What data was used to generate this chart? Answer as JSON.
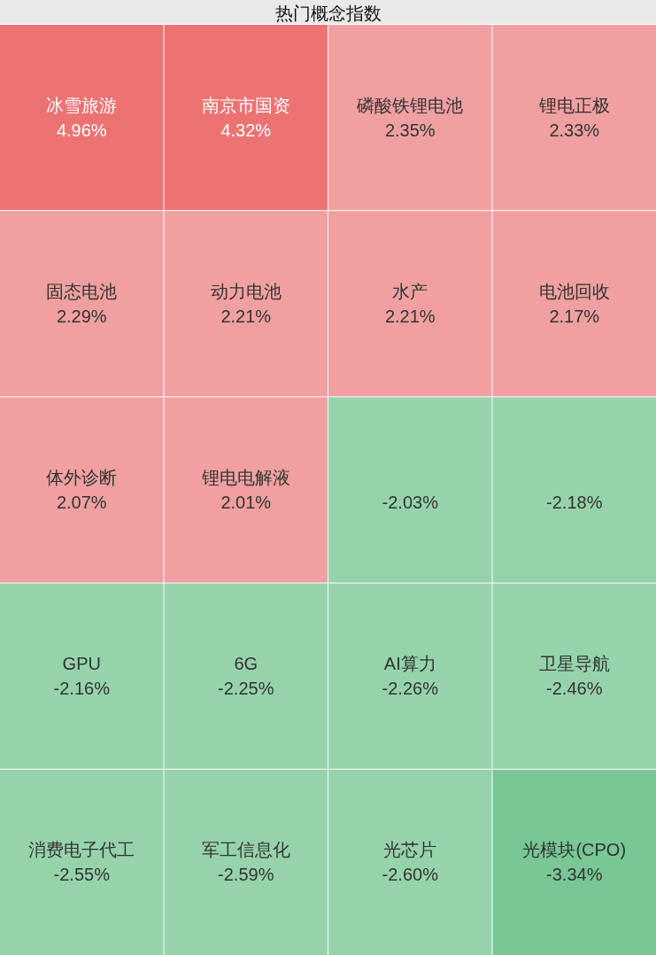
{
  "chart_data": {
    "type": "other",
    "title": "热门概念指数",
    "categories": [
      "冰雪旅游",
      "南京市国资",
      "磷酸铁锂电池",
      "锂电正极",
      "固态电池",
      "动力电池",
      "水产",
      "电池回收",
      "体外诊断",
      "锂电电解液",
      null,
      null,
      "GPU",
      "6G",
      "AI算力",
      "卫星导航",
      "消费电子代工",
      "军工信息化",
      "光芯片",
      "光模块(CPO)"
    ],
    "values": [
      4.96,
      4.32,
      2.35,
      2.33,
      2.29,
      2.21,
      2.21,
      2.17,
      2.07,
      2.01,
      -2.03,
      -2.18,
      -2.16,
      -2.25,
      -2.26,
      -2.46,
      -2.55,
      -2.59,
      -2.6,
      -3.34
    ],
    "value_labels": [
      "4.96%",
      "4.32%",
      "2.35%",
      "2.33%",
      "2.29%",
      "2.21%",
      "2.21%",
      "2.17%",
      "2.07%",
      "2.01%",
      "-2.03%",
      "-2.18%",
      "-2.16%",
      "-2.25%",
      "-2.26%",
      "-2.46%",
      "-2.55%",
      "-2.59%",
      "-2.60%",
      "-3.34%"
    ]
  }
}
